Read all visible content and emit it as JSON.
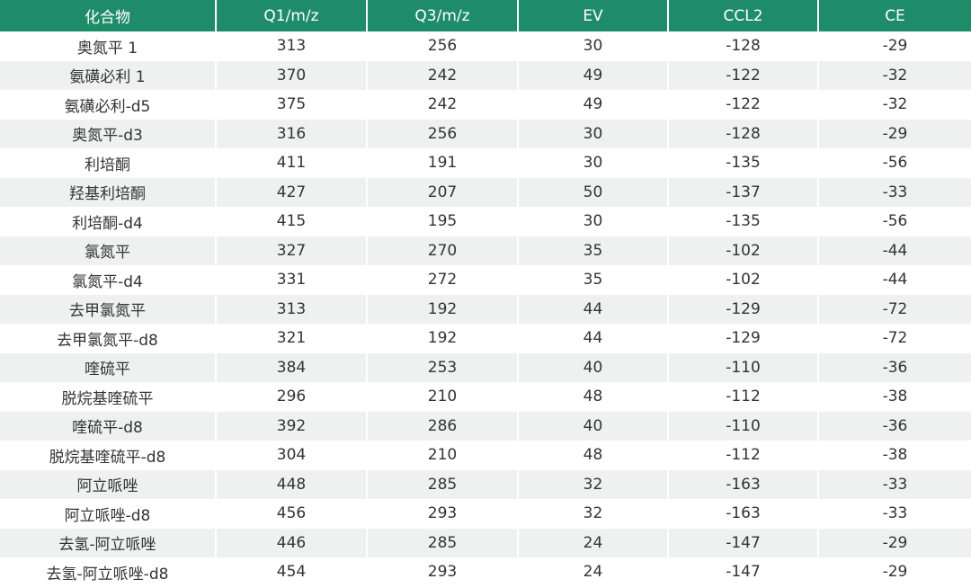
{
  "table": {
    "header": [
      "化合物",
      "Q1/m/z",
      "Q3/m/z",
      "EV",
      "CCL2",
      "CE"
    ],
    "rows": [
      [
        "奥氮平 1",
        313,
        256,
        30,
        -128,
        -29
      ],
      [
        "氨磺必利 1",
        370,
        242,
        49,
        -122,
        -32
      ],
      [
        "氨磺必利-d5",
        375,
        242,
        49,
        -122,
        -32
      ],
      [
        "奥氮平-d3",
        316,
        256,
        30,
        -128,
        -29
      ],
      [
        "利培酮",
        411,
        191,
        30,
        -135,
        -56
      ],
      [
        "羟基利培酮",
        427,
        207,
        50,
        -137,
        -33
      ],
      [
        "利培酮-d4",
        415,
        195,
        30,
        -135,
        -56
      ],
      [
        "氯氮平",
        327,
        270,
        35,
        -102,
        -44
      ],
      [
        "氯氮平-d4",
        331,
        272,
        35,
        -102,
        -44
      ],
      [
        "去甲氯氮平",
        313,
        192,
        44,
        -129,
        -72
      ],
      [
        "去甲氯氮平-d8",
        321,
        192,
        44,
        -129,
        -72
      ],
      [
        "喹硫平",
        384,
        253,
        40,
        -110,
        -36
      ],
      [
        "脱烷基喹硫平",
        296,
        210,
        48,
        -112,
        -38
      ],
      [
        "喹硫平-d8",
        392,
        286,
        40,
        -110,
        -36
      ],
      [
        "脱烷基喹硫平-d8",
        304,
        210,
        48,
        -112,
        -38
      ],
      [
        "阿立哌唑",
        448,
        285,
        32,
        -163,
        -33
      ],
      [
        "阿立哌唑-d8",
        456,
        293,
        32,
        -163,
        -33
      ],
      [
        "去氢-阿立哌唑",
        446,
        285,
        24,
        -147,
        -29
      ],
      [
        "去氢-阿立哌唑-d8",
        454,
        293,
        24,
        -147,
        -29
      ]
    ]
  }
}
